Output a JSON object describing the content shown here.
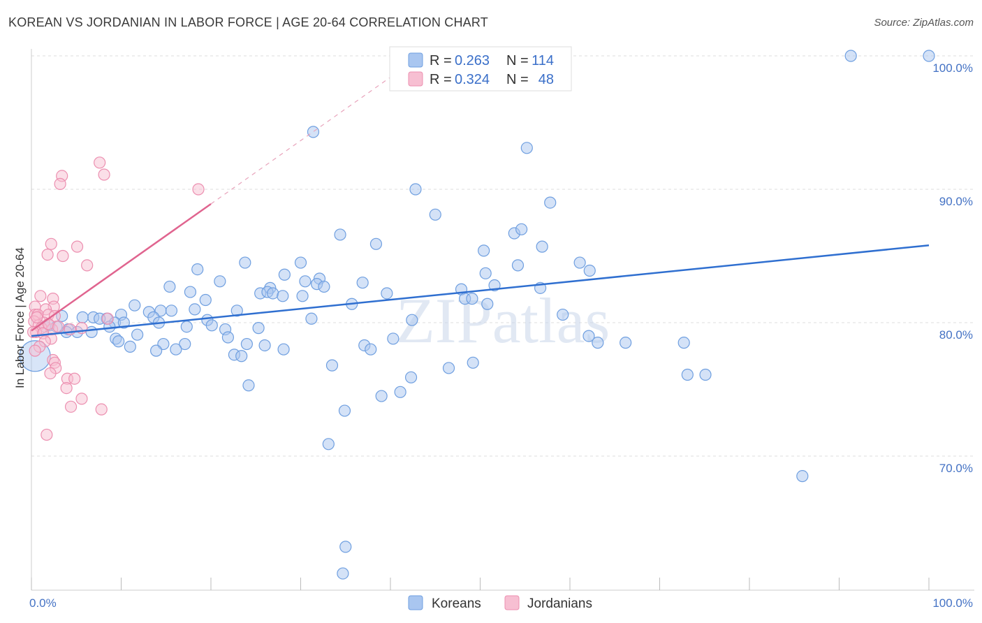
{
  "title": "KOREAN VS JORDANIAN IN LABOR FORCE | AGE 20-64 CORRELATION CHART",
  "source": "Source: ZipAtlas.com",
  "watermark": "ZIPatlas",
  "colors": {
    "korean_fill": "#a9c6f0",
    "korean_stroke": "#6f9fe0",
    "korean_line": "#2f6fd0",
    "jordanian_fill": "#f7bfd2",
    "jordanian_stroke": "#ec8fb0",
    "jordanian_line": "#e0648f",
    "tick_label": "#4472c4",
    "grid": "#dddddd"
  },
  "legend": {
    "rows": [
      {
        "series": "Koreans",
        "r_label": "R =",
        "r_value": "0.263",
        "n_label": "N =",
        "n_value": "114"
      },
      {
        "series": "Jordanians",
        "r_label": "R =",
        "r_value": "0.324",
        "n_label": "N =",
        "n_value": "48"
      }
    ]
  },
  "chart_data": {
    "type": "scatter",
    "title": "KOREAN VS JORDANIAN IN LABOR FORCE | AGE 20-64 CORRELATION CHART",
    "xlabel": "",
    "ylabel": "In Labor Force | Age 20-64",
    "xlim": [
      0,
      100
    ],
    "ylim": [
      60,
      101.5
    ],
    "x_tick_labels": [
      {
        "value": 0,
        "label": "0.0%"
      },
      {
        "value": 100,
        "label": "100.0%"
      }
    ],
    "y_tick_labels": [
      {
        "value": 70,
        "label": "70.0%"
      },
      {
        "value": 80,
        "label": "80.0%"
      },
      {
        "value": 90,
        "label": "90.0%"
      },
      {
        "value": 100,
        "label": "100.0%"
      }
    ],
    "grid": true,
    "legend_placement": "top-center",
    "bottom_legend": [
      "Koreans",
      "Jordanians"
    ],
    "series": [
      {
        "name": "Koreans",
        "r": 0.263,
        "n": 114,
        "trend": {
          "x": [
            0,
            100
          ],
          "y": [
            79.0,
            85.8
          ]
        },
        "points": [
          [
            40.9,
            100.0
          ],
          [
            91.3,
            100.0
          ],
          [
            100.0,
            100.0
          ],
          [
            31.4,
            94.3
          ],
          [
            55.2,
            93.1
          ],
          [
            42.8,
            90.0
          ],
          [
            57.8,
            89.0
          ],
          [
            45.0,
            88.1
          ],
          [
            34.4,
            86.6
          ],
          [
            53.8,
            86.7
          ],
          [
            54.6,
            87.0
          ],
          [
            38.4,
            85.9
          ],
          [
            50.4,
            85.4
          ],
          [
            56.9,
            85.7
          ],
          [
            30.0,
            84.5
          ],
          [
            23.8,
            84.5
          ],
          [
            61.1,
            84.5
          ],
          [
            54.2,
            84.3
          ],
          [
            62.2,
            83.9
          ],
          [
            50.6,
            83.7
          ],
          [
            18.5,
            84.0
          ],
          [
            28.2,
            83.6
          ],
          [
            21.0,
            83.1
          ],
          [
            30.5,
            83.1
          ],
          [
            32.1,
            83.3
          ],
          [
            31.8,
            82.9
          ],
          [
            36.9,
            83.0
          ],
          [
            15.4,
            82.7
          ],
          [
            32.6,
            82.7
          ],
          [
            26.6,
            82.6
          ],
          [
            47.9,
            82.5
          ],
          [
            51.6,
            82.8
          ],
          [
            56.7,
            82.6
          ],
          [
            17.7,
            82.3
          ],
          [
            25.5,
            82.2
          ],
          [
            26.3,
            82.3
          ],
          [
            26.9,
            82.2
          ],
          [
            28.0,
            82.0
          ],
          [
            30.2,
            82.0
          ],
          [
            39.6,
            82.2
          ],
          [
            48.3,
            81.8
          ],
          [
            49.1,
            81.8
          ],
          [
            50.8,
            81.4
          ],
          [
            19.4,
            81.7
          ],
          [
            35.7,
            81.4
          ],
          [
            11.5,
            81.3
          ],
          [
            13.1,
            80.8
          ],
          [
            18.2,
            81.0
          ],
          [
            22.9,
            80.9
          ],
          [
            10.0,
            80.6
          ],
          [
            14.4,
            80.9
          ],
          [
            15.6,
            80.9
          ],
          [
            59.2,
            80.6
          ],
          [
            6.9,
            80.4
          ],
          [
            5.7,
            80.4
          ],
          [
            8.4,
            80.3
          ],
          [
            9.3,
            80.0
          ],
          [
            10.3,
            80.0
          ],
          [
            13.6,
            80.4
          ],
          [
            14.2,
            80.0
          ],
          [
            19.6,
            80.2
          ],
          [
            31.2,
            80.3
          ],
          [
            42.4,
            80.2
          ],
          [
            3.4,
            80.5
          ],
          [
            7.6,
            80.3
          ],
          [
            1.5,
            79.7
          ],
          [
            2.0,
            79.8
          ],
          [
            2.8,
            79.7
          ],
          [
            4.1,
            79.5
          ],
          [
            5.1,
            79.3
          ],
          [
            8.7,
            79.7
          ],
          [
            17.3,
            79.7
          ],
          [
            20.1,
            79.8
          ],
          [
            21.6,
            79.5
          ],
          [
            25.3,
            79.6
          ],
          [
            3.9,
            79.3
          ],
          [
            6.7,
            79.3
          ],
          [
            11.8,
            79.1
          ],
          [
            62.1,
            79.0
          ],
          [
            72.7,
            78.5
          ],
          [
            66.2,
            78.5
          ],
          [
            63.1,
            78.5
          ],
          [
            9.4,
            78.8
          ],
          [
            9.7,
            78.6
          ],
          [
            14.7,
            78.4
          ],
          [
            17.1,
            78.4
          ],
          [
            21.9,
            78.9
          ],
          [
            24.0,
            78.4
          ],
          [
            26.0,
            78.3
          ],
          [
            37.1,
            78.3
          ],
          [
            37.8,
            78.0
          ],
          [
            40.3,
            78.8
          ],
          [
            11.0,
            78.2
          ],
          [
            13.9,
            77.9
          ],
          [
            16.1,
            78.0
          ],
          [
            28.1,
            78.0
          ],
          [
            22.6,
            77.6
          ],
          [
            23.4,
            77.5
          ],
          [
            33.5,
            76.8
          ],
          [
            46.5,
            76.6
          ],
          [
            49.2,
            77.0
          ],
          [
            42.3,
            75.9
          ],
          [
            73.1,
            76.1
          ],
          [
            75.1,
            76.1
          ],
          [
            24.2,
            75.3
          ],
          [
            41.1,
            74.8
          ],
          [
            39.0,
            74.5
          ],
          [
            34.9,
            73.4
          ],
          [
            33.1,
            70.9
          ],
          [
            85.9,
            68.5
          ],
          [
            35.0,
            63.2
          ],
          [
            34.7,
            61.2
          ],
          [
            0.4,
            77.5
          ]
        ]
      },
      {
        "name": "Jordanians",
        "r": 0.324,
        "n": 48,
        "trend": {
          "x": [
            0,
            20
          ],
          "y": [
            79.4,
            88.9
          ]
        },
        "trend_dashed": {
          "x": [
            20,
            40
          ],
          "y": [
            88.9,
            98.4
          ]
        },
        "points": [
          [
            7.6,
            92.0
          ],
          [
            8.1,
            91.1
          ],
          [
            3.4,
            91.0
          ],
          [
            3.2,
            90.4
          ],
          [
            18.6,
            90.0
          ],
          [
            2.2,
            85.9
          ],
          [
            5.1,
            85.7
          ],
          [
            1.8,
            85.1
          ],
          [
            3.5,
            85.0
          ],
          [
            6.2,
            84.3
          ],
          [
            1.0,
            82.0
          ],
          [
            2.4,
            81.8
          ],
          [
            0.4,
            81.2
          ],
          [
            2.5,
            81.2
          ],
          [
            1.6,
            81.0
          ],
          [
            0.4,
            80.6
          ],
          [
            0.7,
            80.6
          ],
          [
            1.9,
            80.6
          ],
          [
            2.6,
            80.5
          ],
          [
            0.3,
            80.1
          ],
          [
            1.4,
            80.0
          ],
          [
            0.8,
            79.8
          ],
          [
            1.1,
            79.6
          ],
          [
            8.5,
            80.3
          ],
          [
            2.3,
            79.5
          ],
          [
            0.5,
            79.3
          ],
          [
            0.2,
            79.3
          ],
          [
            1.3,
            79.2
          ],
          [
            5.6,
            79.6
          ],
          [
            4.3,
            79.5
          ],
          [
            2.2,
            78.8
          ],
          [
            1.5,
            78.6
          ],
          [
            0.9,
            78.2
          ],
          [
            0.4,
            77.9
          ],
          [
            2.4,
            77.2
          ],
          [
            2.6,
            77.0
          ],
          [
            2.7,
            76.6
          ],
          [
            2.1,
            76.2
          ],
          [
            4.0,
            75.8
          ],
          [
            4.8,
            75.8
          ],
          [
            3.9,
            75.1
          ],
          [
            5.6,
            74.3
          ],
          [
            4.4,
            73.7
          ],
          [
            7.8,
            73.5
          ],
          [
            1.7,
            71.6
          ],
          [
            1.9,
            79.9
          ],
          [
            0.6,
            80.4
          ],
          [
            3.0,
            79.7
          ]
        ]
      }
    ]
  }
}
